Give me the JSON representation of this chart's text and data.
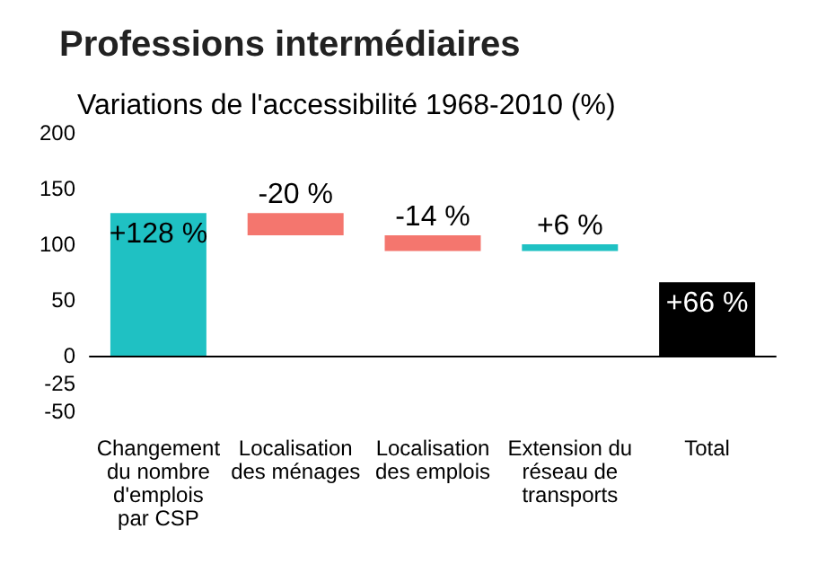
{
  "chart_data": {
    "type": "bar",
    "title": "Professions intermédiaires",
    "subtitle": "Variations de l'accessibilité 1968-2010 (%)",
    "categories": [
      "Changement\ndu nombre\nd'emplois\npar CSP",
      "Localisation\ndes ménages",
      "Localisation\ndes emplois",
      "Extension du\nréseau de\ntransports",
      "Total"
    ],
    "values": [
      128,
      -20,
      -14,
      6,
      66
    ],
    "base": [
      0,
      128,
      108,
      94,
      0
    ],
    "colors": [
      "#1fc1c3",
      "#f4766e",
      "#f4766e",
      "#1fc1c3",
      "#000000"
    ],
    "value_labels": [
      "+128 %",
      "-20 %",
      "-14 %",
      "+6 %",
      "+66 %"
    ],
    "ylim": [
      -50,
      200
    ],
    "yticks": [
      200,
      150,
      100,
      50,
      0,
      -25,
      -50
    ]
  }
}
